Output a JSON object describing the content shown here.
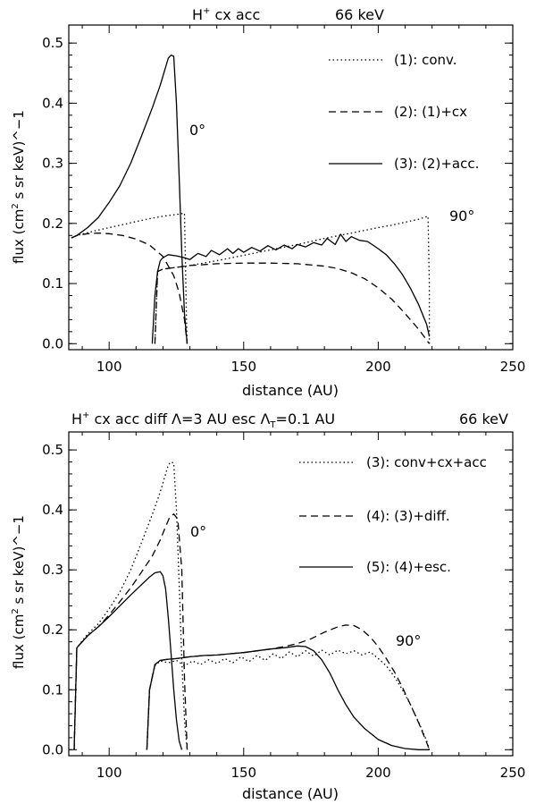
{
  "chart_data": [
    {
      "type": "line",
      "title": {
        "pre": "H",
        "sup": "+",
        "post": " cx acc",
        "energy": "66 keV"
      },
      "xlabel": "distance (AU)",
      "ylabel": "flux (cm² s sr keV)^−1",
      "xlim": [
        85,
        250
      ],
      "ylim": [
        -0.01,
        0.53
      ],
      "xticks": [
        "100",
        "150",
        "200",
        "250"
      ],
      "xtick_values": [
        100,
        150,
        200,
        250
      ],
      "yticks": [
        "0.0",
        "0.1",
        "0.2",
        "0.3",
        "0.4",
        "0.5"
      ],
      "ytick_values": [
        0.0,
        0.1,
        0.2,
        0.3,
        0.4,
        0.5
      ],
      "legend": [
        {
          "label": "(1): conv.",
          "style": "dotted"
        },
        {
          "label": "(2): (1)+cx",
          "style": "dashed"
        },
        {
          "label": "(3): (2)+acc.",
          "style": "solid"
        }
      ],
      "annotations": [
        {
          "text": "0°",
          "x": 133,
          "y": 0.315
        },
        {
          "text": "90°",
          "x": 227,
          "y": 0.2
        }
      ],
      "series": [
        {
          "name": "(1): conv. 0°",
          "style": "dotted",
          "x": [
            86,
            88,
            95,
            100,
            105,
            110,
            115,
            120,
            125,
            128,
            128.5,
            128.8,
            129
          ],
          "y": [
            0.176,
            0.18,
            0.188,
            0.193,
            0.198,
            0.203,
            0.208,
            0.212,
            0.215,
            0.217,
            0.1,
            0.03,
            0.0
          ]
        },
        {
          "name": "(1): conv. 90°",
          "style": "dotted",
          "x": [
            117,
            118,
            120,
            125,
            130,
            140,
            150,
            160,
            170,
            180,
            190,
            200,
            205,
            210,
            215,
            218.5,
            219,
            219
          ],
          "y": [
            0.0,
            0.12,
            0.124,
            0.127,
            0.13,
            0.138,
            0.147,
            0.156,
            0.165,
            0.175,
            0.184,
            0.193,
            0.197,
            0.202,
            0.207,
            0.212,
            0.1,
            0.0
          ]
        },
        {
          "name": "(2): (1)+cx 0°",
          "style": "dashed",
          "x": [
            86,
            88,
            92,
            96,
            100,
            105,
            110,
            115,
            120,
            124,
            126,
            128,
            129
          ],
          "y": [
            0.176,
            0.18,
            0.183,
            0.184,
            0.183,
            0.18,
            0.174,
            0.164,
            0.145,
            0.113,
            0.085,
            0.04,
            0.0
          ]
        },
        {
          "name": "(2): (1)+cx 90°",
          "style": "dashed",
          "x": [
            117,
            118,
            120,
            125,
            130,
            140,
            150,
            160,
            170,
            180,
            185,
            190,
            195,
            200,
            205,
            210,
            215,
            219
          ],
          "y": [
            0.0,
            0.12,
            0.124,
            0.127,
            0.13,
            0.133,
            0.134,
            0.134,
            0.133,
            0.129,
            0.125,
            0.118,
            0.108,
            0.093,
            0.074,
            0.05,
            0.024,
            0.0
          ]
        },
        {
          "name": "(3): (2)+acc. 0°",
          "style": "solid",
          "x": [
            86,
            88,
            92,
            96,
            100,
            104,
            108,
            112,
            116,
            119,
            121,
            122,
            123,
            124,
            125,
            126,
            127,
            128,
            129
          ],
          "y": [
            0.176,
            0.18,
            0.193,
            0.21,
            0.235,
            0.263,
            0.3,
            0.345,
            0.392,
            0.43,
            0.46,
            0.475,
            0.48,
            0.478,
            0.4,
            0.28,
            0.15,
            0.05,
            0.0
          ]
        },
        {
          "name": "(3): (2)+acc. 90°",
          "style": "solid",
          "x": [
            116,
            117,
            118,
            119,
            120,
            122,
            125,
            128,
            130,
            133,
            136,
            138,
            141,
            144,
            146,
            148,
            150,
            153,
            156,
            159,
            162,
            165,
            168,
            170,
            173,
            176,
            179,
            181,
            184,
            186,
            188,
            190,
            193,
            196,
            198,
            200,
            203,
            206,
            209,
            212,
            215,
            218,
            219
          ],
          "y": [
            0.0,
            0.08,
            0.12,
            0.138,
            0.143,
            0.148,
            0.146,
            0.143,
            0.14,
            0.15,
            0.145,
            0.155,
            0.148,
            0.158,
            0.15,
            0.158,
            0.152,
            0.16,
            0.154,
            0.163,
            0.156,
            0.164,
            0.158,
            0.165,
            0.161,
            0.168,
            0.164,
            0.175,
            0.165,
            0.182,
            0.17,
            0.178,
            0.172,
            0.17,
            0.164,
            0.158,
            0.148,
            0.133,
            0.115,
            0.092,
            0.065,
            0.032,
            0.012
          ]
        }
      ]
    },
    {
      "type": "line",
      "title": {
        "pre": "H",
        "sup": "+",
        "post": " cx acc diff Λ=3 AU esc Λ",
        "sub": "T",
        "post2": "=0.1 AU",
        "energy": "66 keV"
      },
      "xlabel": "distance (AU)",
      "ylabel": "flux (cm² s sr keV)^−1",
      "xlim": [
        85,
        250
      ],
      "ylim": [
        -0.01,
        0.53
      ],
      "xticks": [
        "100",
        "150",
        "200",
        "250"
      ],
      "xtick_values": [
        100,
        150,
        200,
        250
      ],
      "yticks": [
        "0.0",
        "0.1",
        "0.2",
        "0.3",
        "0.4",
        "0.5"
      ],
      "ytick_values": [
        0.0,
        0.1,
        0.2,
        0.3,
        0.4,
        0.5
      ],
      "legend": [
        {
          "label": "(3): conv+cx+acc",
          "style": "dotted"
        },
        {
          "label": "(4): (3)+diff.",
          "style": "dashed"
        },
        {
          "label": "(5): (4)+esc.",
          "style": "solid"
        }
      ],
      "annotations": [
        {
          "text": "0°",
          "x": 133,
          "y": 0.345
        },
        {
          "text": "90°",
          "x": 210,
          "y": 0.19
        }
      ],
      "series": [
        {
          "name": "(3): conv+cx+acc 0°",
          "style": "dotted",
          "x": [
            87,
            88,
            92,
            96,
            100,
            104,
            108,
            112,
            116,
            119,
            121,
            122,
            123,
            124,
            125,
            126,
            127,
            128,
            129
          ],
          "y": [
            0.0,
            0.17,
            0.193,
            0.21,
            0.235,
            0.263,
            0.3,
            0.345,
            0.392,
            0.43,
            0.46,
            0.475,
            0.48,
            0.478,
            0.4,
            0.28,
            0.15,
            0.05,
            0.0
          ]
        },
        {
          "name": "(3): conv+cx+acc 90°",
          "style": "dotted",
          "x": [
            114,
            115,
            117,
            119,
            122,
            125,
            128,
            131,
            134,
            137,
            140,
            143,
            146,
            149,
            152,
            155,
            158,
            161,
            164,
            167,
            170,
            173,
            176,
            179,
            182,
            185,
            188,
            191,
            194,
            197,
            200,
            203,
            206,
            209,
            212,
            215,
            218,
            219
          ],
          "y": [
            0.0,
            0.1,
            0.14,
            0.148,
            0.145,
            0.149,
            0.14,
            0.148,
            0.142,
            0.15,
            0.144,
            0.152,
            0.145,
            0.155,
            0.147,
            0.157,
            0.149,
            0.16,
            0.152,
            0.163,
            0.155,
            0.165,
            0.156,
            0.166,
            0.158,
            0.166,
            0.16,
            0.165,
            0.158,
            0.163,
            0.152,
            0.14,
            0.122,
            0.1,
            0.075,
            0.046,
            0.015,
            0.0
          ]
        },
        {
          "name": "(4): (3)+diff. 0°",
          "style": "dashed",
          "x": [
            87,
            88,
            92,
            96,
            100,
            104,
            108,
            112,
            116,
            119,
            121,
            122.5,
            124,
            125.5,
            127,
            128,
            129
          ],
          "y": [
            0.0,
            0.17,
            0.19,
            0.205,
            0.225,
            0.247,
            0.27,
            0.296,
            0.323,
            0.35,
            0.372,
            0.388,
            0.393,
            0.385,
            0.3,
            0.12,
            0.0
          ]
        },
        {
          "name": "(4): (3)+diff. 90°",
          "style": "dashed",
          "x": [
            114,
            115,
            117,
            119,
            122,
            125,
            130,
            135,
            140,
            145,
            150,
            155,
            160,
            165,
            170,
            175,
            180,
            185,
            188,
            191,
            194,
            197,
            200,
            203,
            206,
            209,
            212,
            215,
            218,
            219
          ],
          "y": [
            0.0,
            0.1,
            0.142,
            0.149,
            0.151,
            0.152,
            0.155,
            0.157,
            0.158,
            0.16,
            0.162,
            0.165,
            0.168,
            0.172,
            0.177,
            0.185,
            0.196,
            0.205,
            0.208,
            0.207,
            0.2,
            0.188,
            0.172,
            0.152,
            0.13,
            0.104,
            0.075,
            0.045,
            0.012,
            0.0
          ]
        },
        {
          "name": "(5): (4)+esc. 0°",
          "style": "solid",
          "x": [
            87,
            88,
            92,
            96,
            100,
            104,
            108,
            112,
            115,
            117,
            119,
            120,
            121,
            122,
            123,
            124,
            125,
            126,
            127
          ],
          "y": [
            0.0,
            0.17,
            0.19,
            0.205,
            0.222,
            0.24,
            0.258,
            0.275,
            0.288,
            0.295,
            0.297,
            0.29,
            0.268,
            0.22,
            0.16,
            0.1,
            0.05,
            0.015,
            0.0
          ]
        },
        {
          "name": "(5): (4)+esc. 90°",
          "style": "solid",
          "x": [
            114,
            115,
            117,
            119,
            122,
            125,
            130,
            135,
            140,
            145,
            150,
            155,
            160,
            165,
            170,
            173,
            176,
            179,
            182,
            185,
            188,
            191,
            195,
            200,
            205,
            210,
            215,
            218,
            219
          ],
          "y": [
            0.0,
            0.1,
            0.142,
            0.149,
            0.151,
            0.152,
            0.155,
            0.157,
            0.158,
            0.16,
            0.162,
            0.165,
            0.168,
            0.17,
            0.173,
            0.172,
            0.165,
            0.15,
            0.128,
            0.1,
            0.075,
            0.054,
            0.035,
            0.017,
            0.007,
            0.002,
            0.0,
            0.0,
            0.0
          ]
        }
      ]
    }
  ]
}
